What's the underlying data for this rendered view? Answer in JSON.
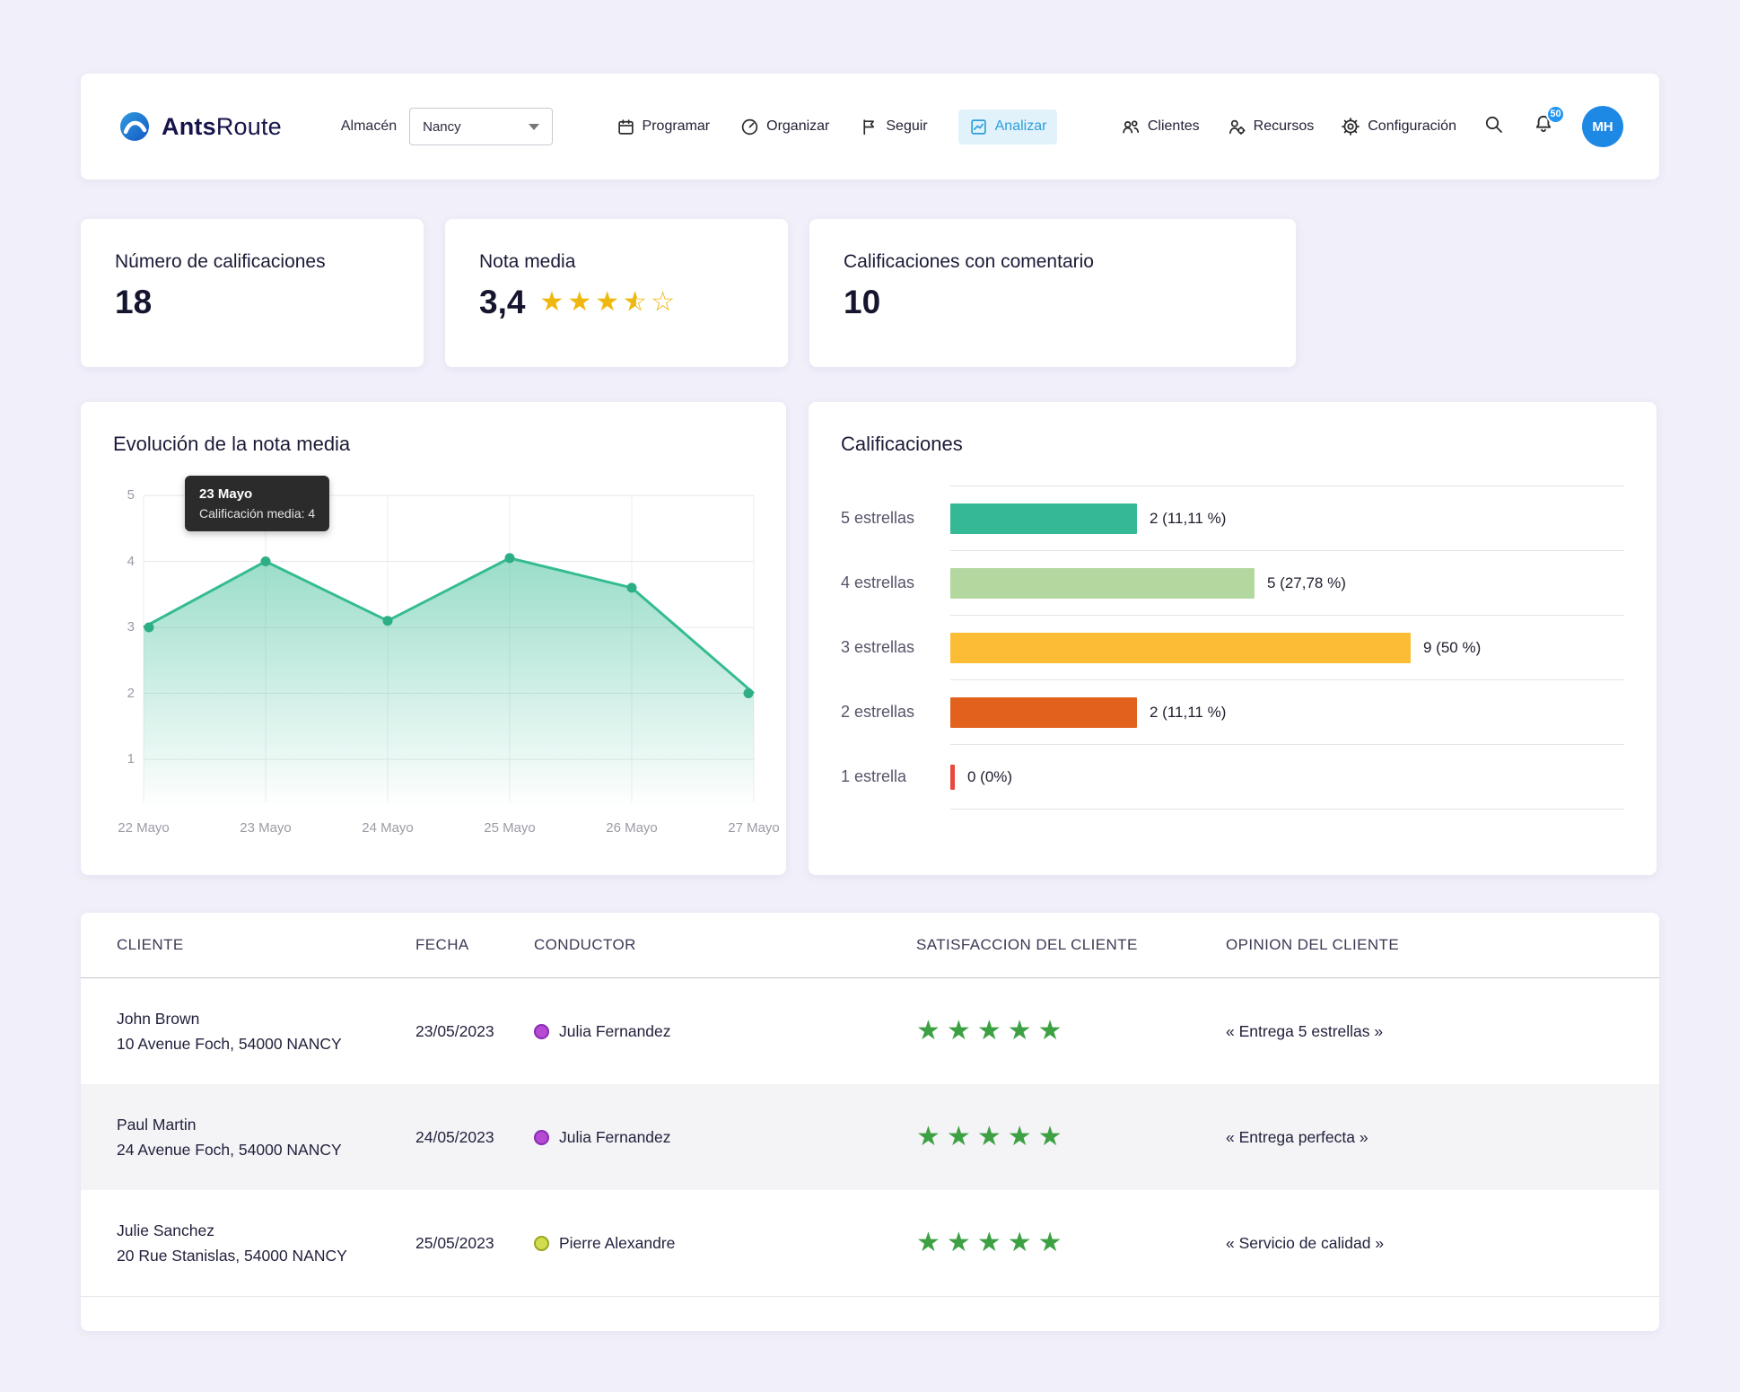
{
  "nav": {
    "brand_bold": "Ants",
    "brand_light": "Route",
    "warehouse_label": "Almacén",
    "warehouse_value": "Nancy",
    "items": [
      {
        "label": "Programar",
        "icon": "calendar-icon",
        "active": false
      },
      {
        "label": "Organizar",
        "icon": "gauge-icon",
        "active": false
      },
      {
        "label": "Seguir",
        "icon": "flag-icon",
        "active": false
      },
      {
        "label": "Analizar",
        "icon": "analyze-chart-icon",
        "active": true
      }
    ],
    "right_items": [
      {
        "label": "Clientes",
        "icon": "clients-icon"
      },
      {
        "label": "Recursos",
        "icon": "resources-icon"
      },
      {
        "label": "Configuración",
        "icon": "settings-gear-icon"
      }
    ],
    "notification_count": "50",
    "avatar_initials": "MH"
  },
  "stats": [
    {
      "title": "Número de calificaciones",
      "value": "18"
    },
    {
      "title": "Nota media",
      "value": "3,4",
      "stars_value": 3.5,
      "stars_max": 5
    },
    {
      "title": "Calificaciones con comentario",
      "value": "10"
    }
  ],
  "chart_data": [
    {
      "type": "area",
      "title": "Evolución de la nota media",
      "x": [
        "22 Mayo",
        "23 Mayo",
        "24 Mayo",
        "25 Mayo",
        "26 Mayo",
        "27 Mayo"
      ],
      "values": [
        3,
        4,
        3.1,
        4.05,
        3.6,
        2
      ],
      "ylim": [
        1,
        5
      ],
      "yticks": [
        1,
        2,
        3,
        4,
        5
      ],
      "grid": true,
      "line_color": "#35bb92",
      "dot_color": "#2eae87",
      "tooltip": {
        "title": "23 Mayo",
        "text": "Calificación media: 4"
      }
    },
    {
      "type": "bar",
      "title": "Calificaciones",
      "orientation": "horizontal",
      "categories": [
        "5 estrellas",
        "4 estrellas",
        "3 estrellas",
        "2 estrellas",
        "1 estrella"
      ],
      "values": [
        2,
        5,
        9,
        2,
        0
      ],
      "value_labels": [
        "2 (11,11 %)",
        "5 (27,78 %)",
        "9 (50 %)",
        "2 (11,11 %)",
        "0 (0%)"
      ],
      "colors": [
        "#35b894",
        "#b3d89f",
        "#fcbc35",
        "#e2611d",
        "#e8483f"
      ]
    }
  ],
  "table": {
    "headers": [
      "CLIENTE",
      "FECHA",
      "CONDUCTOR",
      "SATISFACCION DEL CLIENTE",
      "OPINION DEL CLIENTE"
    ],
    "star_color": "#3da144",
    "rows": [
      {
        "client": "John Brown",
        "address": "10 Avenue Foch, 54000 NANCY",
        "date": "23/05/2023",
        "driver": "Julia Fernandez",
        "dot_fill": "#b44bd2",
        "dot_ring": "#8a2bb5",
        "rating": 5,
        "opinion": "« Entrega 5 estrellas »"
      },
      {
        "client": "Paul Martin",
        "address": "24 Avenue Foch, 54000 NANCY",
        "date": "24/05/2023",
        "driver": "Julia Fernandez",
        "dot_fill": "#b44bd2",
        "dot_ring": "#8a2bb5",
        "rating": 5,
        "opinion": "« Entrega perfecta »"
      },
      {
        "client": "Julie Sanchez",
        "address": "20 Rue Stanislas, 54000 NANCY",
        "date": "25/05/2023",
        "driver": "Pierre Alexandre",
        "dot_fill": "#cfdd4e",
        "dot_ring": "#9aa61f",
        "rating": 5,
        "opinion": "« Servicio de calidad »"
      }
    ]
  }
}
